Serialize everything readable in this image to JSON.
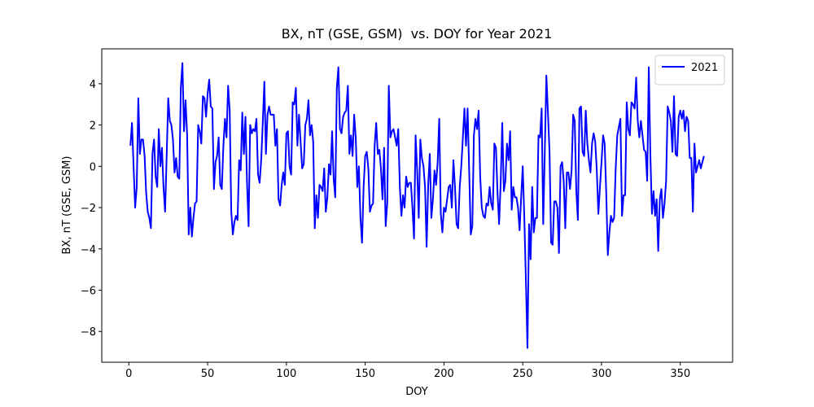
{
  "chart_data": {
    "type": "line",
    "title": "BX, nT (GSE, GSM)  vs. DOY for Year 2021",
    "x_label": "DOY",
    "y_label": "BX, nT (GSE, GSM)",
    "xlim": [
      -17.2,
      383.2
    ],
    "ylim": [
      -9.49,
      5.69
    ],
    "xticks": [
      0,
      50,
      100,
      150,
      200,
      250,
      300,
      350
    ],
    "yticks": [
      {
        "value": -8,
        "label": "−8"
      },
      {
        "value": -6,
        "label": "−6"
      },
      {
        "value": -4,
        "label": "−4"
      },
      {
        "value": -2,
        "label": "−2"
      },
      0,
      2,
      4
    ],
    "legend": "upper right",
    "x": [
      1,
      2,
      3,
      4,
      5,
      6,
      7,
      8,
      9,
      10,
      11,
      12,
      13,
      14,
      15,
      16,
      17,
      18,
      19,
      20,
      21,
      22,
      23,
      24,
      25,
      26,
      27,
      28,
      29,
      30,
      31,
      32,
      33,
      34,
      35,
      36,
      37,
      38,
      39,
      40,
      41,
      42,
      43,
      44,
      45,
      46,
      47,
      48,
      49,
      50,
      51,
      52,
      53,
      54,
      55,
      56,
      57,
      58,
      59,
      60,
      61,
      62,
      63,
      64,
      65,
      66,
      67,
      68,
      69,
      70,
      71,
      72,
      73,
      74,
      75,
      76,
      77,
      78,
      79,
      80,
      81,
      82,
      83,
      84,
      85,
      86,
      87,
      88,
      89,
      90,
      91,
      92,
      93,
      94,
      95,
      96,
      97,
      98,
      99,
      100,
      101,
      102,
      103,
      104,
      105,
      106,
      107,
      108,
      109,
      110,
      111,
      112,
      113,
      114,
      115,
      116,
      117,
      118,
      119,
      120,
      121,
      122,
      123,
      124,
      125,
      126,
      127,
      128,
      129,
      130,
      131,
      132,
      133,
      134,
      135,
      136,
      137,
      138,
      139,
      140,
      141,
      142,
      143,
      144,
      145,
      146,
      147,
      148,
      149,
      150,
      151,
      152,
      153,
      154,
      155,
      156,
      157,
      158,
      159,
      160,
      161,
      162,
      163,
      164,
      165,
      166,
      167,
      168,
      169,
      170,
      171,
      172,
      173,
      174,
      175,
      176,
      177,
      178,
      179,
      180,
      181,
      182,
      183,
      184,
      185,
      186,
      187,
      188,
      189,
      190,
      191,
      192,
      193,
      194,
      195,
      196,
      197,
      198,
      199,
      200,
      201,
      202,
      203,
      204,
      205,
      206,
      207,
      208,
      209,
      210,
      211,
      212,
      213,
      214,
      215,
      216,
      217,
      218,
      219,
      220,
      221,
      222,
      223,
      224,
      225,
      226,
      227,
      228,
      229,
      230,
      231,
      232,
      233,
      234,
      235,
      236,
      237,
      238,
      239,
      240,
      241,
      242,
      243,
      244,
      245,
      246,
      247,
      248,
      249,
      250,
      251,
      252,
      253,
      254,
      255,
      256,
      257,
      258,
      259,
      260,
      261,
      262,
      263,
      264,
      265,
      266,
      267,
      268,
      269,
      270,
      271,
      272,
      273,
      274,
      275,
      276,
      277,
      278,
      279,
      280,
      281,
      282,
      283,
      284,
      285,
      286,
      287,
      288,
      289,
      290,
      291,
      292,
      293,
      294,
      295,
      296,
      297,
      298,
      299,
      300,
      301,
      302,
      303,
      304,
      305,
      306,
      307,
      308,
      309,
      310,
      311,
      312,
      313,
      314,
      315,
      316,
      317,
      318,
      319,
      320,
      321,
      322,
      323,
      324,
      325,
      326,
      327,
      328,
      329,
      330,
      331,
      332,
      333,
      334,
      335,
      336,
      337,
      338,
      339,
      340,
      341,
      342,
      343,
      344,
      345,
      346,
      347,
      348,
      349,
      350,
      351,
      352,
      353,
      354,
      355,
      356,
      357,
      358,
      359,
      360,
      361,
      362,
      363,
      364,
      365
    ],
    "series": [
      {
        "name": "2021",
        "color": "#0000ff",
        "values": [
          1.0,
          2.1,
          0.0,
          -2.0,
          -1.0,
          3.3,
          0.6,
          1.3,
          1.3,
          0.5,
          -1.3,
          -2.2,
          -2.5,
          -3.0,
          0.6,
          1.3,
          -0.5,
          -1.0,
          1.8,
          0.0,
          0.9,
          -1.0,
          -2.2,
          0.5,
          3.3,
          2.2,
          2.0,
          1.3,
          -0.3,
          0.4,
          -0.5,
          -0.6,
          3.8,
          5.0,
          1.7,
          3.2,
          1.5,
          -3.3,
          -2.0,
          -3.4,
          -2.5,
          -1.8,
          -1.7,
          2.0,
          1.7,
          1.1,
          3.4,
          3.3,
          2.4,
          3.5,
          4.2,
          2.9,
          2.8,
          -1.1,
          0.2,
          0.5,
          1.4,
          -0.9,
          -1.1,
          1.0,
          2.3,
          1.4,
          3.9,
          2.7,
          -2.2,
          -3.3,
          -2.7,
          -2.4,
          -2.6,
          0.3,
          -0.2,
          2.6,
          0.6,
          2.4,
          -0.8,
          -2.9,
          2.0,
          1.6,
          1.8,
          1.7,
          2.3,
          -0.4,
          -0.8,
          0.3,
          2.1,
          4.1,
          0.6,
          2.5,
          2.9,
          2.5,
          2.5,
          2.5,
          1.0,
          1.8,
          -1.6,
          -1.9,
          -0.9,
          -0.3,
          -0.9,
          1.6,
          1.7,
          0.0,
          -0.4,
          3.1,
          3.0,
          3.8,
          1.0,
          2.5,
          1.2,
          -0.1,
          0.1,
          2.0,
          2.3,
          3.2,
          1.5,
          2.0,
          1.2,
          -3.0,
          -1.4,
          -2.5,
          -0.9,
          -1.0,
          -1.2,
          -0.1,
          -2.2,
          -1.5,
          0.1,
          -0.4,
          1.7,
          -0.6,
          -1.5,
          3.8,
          4.8,
          1.8,
          1.6,
          2.4,
          2.6,
          2.7,
          3.9,
          0.6,
          1.5,
          0.5,
          2.5,
          1.4,
          -1.0,
          0.0,
          -2.5,
          -3.7,
          -1.0,
          0.5,
          0.7,
          -0.1,
          -2.2,
          -1.9,
          -1.8,
          1.0,
          2.1,
          0.6,
          0.8,
          -0.1,
          -1.6,
          0.9,
          -2.9,
          -1.8,
          3.9,
          1.4,
          1.7,
          1.8,
          1.4,
          1.0,
          1.8,
          -1.0,
          -2.4,
          -1.4,
          -2.0,
          -0.5,
          -1.0,
          -0.8,
          -0.8,
          -2.0,
          -3.5,
          1.5,
          -0.2,
          -2.5,
          1.3,
          0.4,
          0.0,
          -1.0,
          -3.9,
          -0.9,
          0.6,
          -2.5,
          -1.6,
          -0.2,
          -0.9,
          0.2,
          2.3,
          -2.3,
          -3.2,
          -2.0,
          -2.2,
          -1.6,
          -1.0,
          -0.9,
          -2.0,
          0.3,
          -1.0,
          -2.8,
          -3.0,
          -1.0,
          0.0,
          1.4,
          2.8,
          1.0,
          2.8,
          -0.2,
          -3.3,
          -2.9,
          1.5,
          2.3,
          1.8,
          2.7,
          -0.5,
          -2.0,
          -2.4,
          -2.5,
          -1.8,
          -1.9,
          -1.0,
          -1.8,
          -2.1,
          1.1,
          0.9,
          -1.3,
          -2.8,
          -0.8,
          2.1,
          -1.2,
          -0.7,
          1.1,
          0.3,
          1.7,
          -2.1,
          -1.0,
          -1.5,
          -1.5,
          -2.0,
          -3.1,
          -1.5,
          0.0,
          -2.5,
          -5.5,
          -8.8,
          -2.8,
          -4.5,
          -1.0,
          -3.2,
          -2.5,
          -2.5,
          1.5,
          1.4,
          2.8,
          -2.8,
          0.7,
          4.4,
          2.6,
          0.7,
          -3.7,
          -3.8,
          -1.7,
          -1.7,
          -2.0,
          -4.2,
          0.0,
          0.2,
          -0.7,
          -3.0,
          -0.3,
          -0.3,
          -1.1,
          -0.2,
          2.5,
          2.2,
          -1.2,
          -2.6,
          2.8,
          2.9,
          0.7,
          0.5,
          2.7,
          1.1,
          0.3,
          -0.3,
          1.1,
          1.6,
          1.2,
          -0.2,
          -2.3,
          -1.0,
          0.2,
          1.5,
          1.1,
          -1.3,
          -4.3,
          -3.2,
          -2.4,
          -2.7,
          -2.5,
          -0.1,
          1.5,
          1.9,
          2.3,
          -2.4,
          -1.4,
          -1.4,
          3.1,
          1.8,
          1.5,
          3.1,
          3.0,
          2.8,
          4.3,
          2.2,
          1.4,
          2.2,
          1.5,
          0.8,
          0.7,
          -0.7,
          4.8,
          0.6,
          -2.3,
          -1.2,
          -2.4,
          -1.6,
          -4.1,
          -1.6,
          -1.1,
          -2.5,
          -1.8,
          -0.7,
          2.9,
          2.6,
          2.2,
          0.7,
          3.4,
          0.6,
          0.5,
          2.4,
          2.7,
          2.3,
          2.7,
          1.7,
          2.4,
          2.2,
          0.4,
          0.4,
          -2.2,
          1.1,
          -0.3,
          0.0,
          0.3,
          -0.1,
          0.2,
          0.5
        ]
      }
    ]
  }
}
